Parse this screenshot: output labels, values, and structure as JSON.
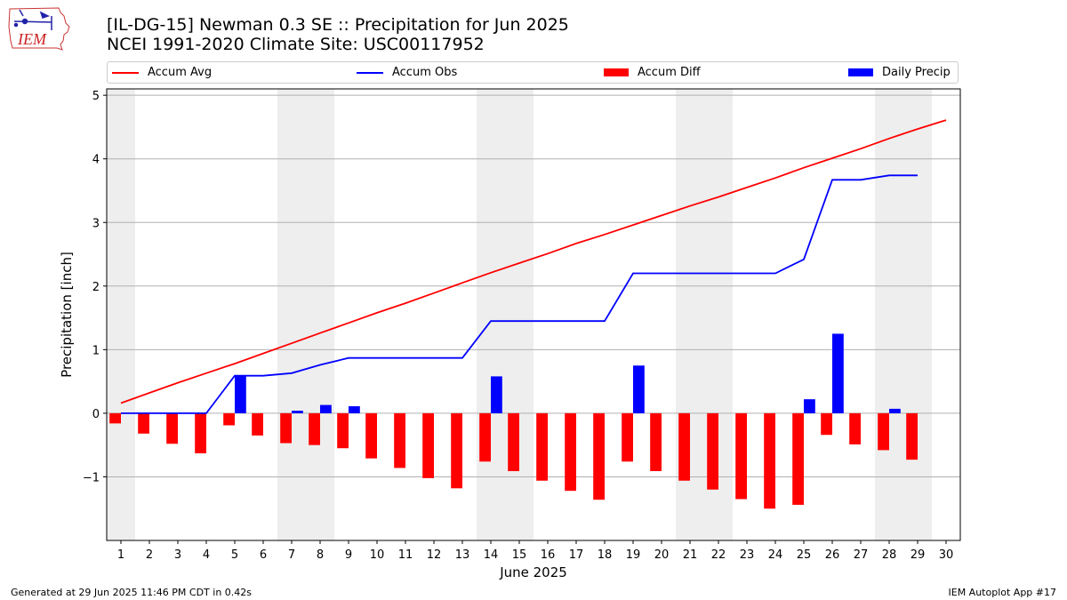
{
  "header": {
    "title_line1": "[IL-DG-15] Newman 0.3 SE :: Precipitation for Jun 2025",
    "title_line2": "NCEI 1991-2020 Climate Site: USC00117952"
  },
  "logo": {
    "text": "IEM",
    "icon": "iowa-state-outline-weather-logo"
  },
  "footer": {
    "left": "Generated at 29 Jun 2025 11:46 PM CDT in 0.42s",
    "right": "IEM Autoplot App #17"
  },
  "colors": {
    "accum_avg": "#ff0000",
    "accum_obs": "#0000ff",
    "accum_diff": "#ff0000",
    "daily_precip": "#0000ff",
    "weekend_shade": "#eeeeee",
    "grid": "#b0b0b0"
  },
  "chart_data": {
    "type": "bar",
    "title": "",
    "xlabel": "June 2025",
    "ylabel": "Precipitation [inch]",
    "x": [
      1,
      2,
      3,
      4,
      5,
      6,
      7,
      8,
      9,
      10,
      11,
      12,
      13,
      14,
      15,
      16,
      17,
      18,
      19,
      20,
      21,
      22,
      23,
      24,
      25,
      26,
      27,
      28,
      29,
      30
    ],
    "xlim": [
      1,
      30
    ],
    "ylim": [
      -2.0,
      5.1
    ],
    "yticks": [
      -1,
      0,
      1,
      2,
      3,
      4,
      5
    ],
    "yticklabels": [
      "−1",
      "0",
      "1",
      "2",
      "3",
      "4",
      "5"
    ],
    "grid": "horizontal",
    "legend_placement": "top",
    "shaded_weekend_days": [
      [
        1,
        1
      ],
      [
        7,
        8
      ],
      [
        14,
        15
      ],
      [
        21,
        22
      ],
      [
        28,
        29
      ]
    ],
    "legend": [
      "Accum Avg",
      "Accum Obs",
      "Accum Diff",
      "Daily Precip"
    ],
    "series": [
      {
        "name": "Accum Avg",
        "kind": "line",
        "x": [
          1,
          2,
          3,
          4,
          5,
          6,
          7,
          8,
          9,
          10,
          11,
          12,
          13,
          14,
          15,
          16,
          17,
          18,
          19,
          20,
          21,
          22,
          23,
          24,
          25,
          26,
          27,
          28,
          29,
          30
        ],
        "values": [
          0.16,
          0.32,
          0.48,
          0.63,
          0.78,
          0.94,
          1.1,
          1.26,
          1.42,
          1.58,
          1.73,
          1.89,
          2.05,
          2.21,
          2.36,
          2.51,
          2.67,
          2.81,
          2.96,
          3.11,
          3.26,
          3.4,
          3.55,
          3.7,
          3.86,
          4.01,
          4.16,
          4.32,
          4.47,
          4.61
        ]
      },
      {
        "name": "Accum Obs",
        "kind": "line",
        "x": [
          1,
          2,
          3,
          4,
          5,
          6,
          7,
          8,
          9,
          10,
          11,
          12,
          13,
          14,
          15,
          16,
          17,
          18,
          19,
          20,
          21,
          22,
          23,
          24,
          25,
          26,
          27,
          28,
          29
        ],
        "values": [
          0,
          0,
          0,
          0,
          0.59,
          0.59,
          0.63,
          0.76,
          0.87,
          0.87,
          0.87,
          0.87,
          0.87,
          1.45,
          1.45,
          1.45,
          1.45,
          1.45,
          2.2,
          2.2,
          2.2,
          2.2,
          2.2,
          2.2,
          2.42,
          3.67,
          3.67,
          3.74,
          3.74
        ]
      },
      {
        "name": "Accum Diff",
        "kind": "bar",
        "x": [
          1,
          2,
          3,
          4,
          5,
          6,
          7,
          8,
          9,
          10,
          11,
          12,
          13,
          14,
          15,
          16,
          17,
          18,
          19,
          20,
          21,
          22,
          23,
          24,
          25,
          26,
          27,
          28,
          29
        ],
        "values": [
          -0.16,
          -0.32,
          -0.48,
          -0.63,
          -0.19,
          -0.35,
          -0.47,
          -0.5,
          -0.55,
          -0.71,
          -0.86,
          -1.02,
          -1.18,
          -0.76,
          -0.91,
          -1.06,
          -1.22,
          -1.36,
          -0.76,
          -0.91,
          -1.06,
          -1.2,
          -1.35,
          -1.5,
          -1.44,
          -0.34,
          -0.49,
          -0.58,
          -0.73
        ]
      },
      {
        "name": "Daily Precip",
        "kind": "bar",
        "x": [
          1,
          2,
          3,
          4,
          5,
          6,
          7,
          8,
          9,
          10,
          11,
          12,
          13,
          14,
          15,
          16,
          17,
          18,
          19,
          20,
          21,
          22,
          23,
          24,
          25,
          26,
          27,
          28,
          29
        ],
        "values": [
          0,
          0,
          0,
          0,
          0.59,
          0,
          0.04,
          0.13,
          0.11,
          0,
          0,
          0,
          0,
          0.58,
          0,
          0,
          0,
          0,
          0.75,
          0,
          0,
          0,
          0,
          0,
          0.22,
          1.25,
          0,
          0.07,
          0
        ]
      }
    ]
  }
}
